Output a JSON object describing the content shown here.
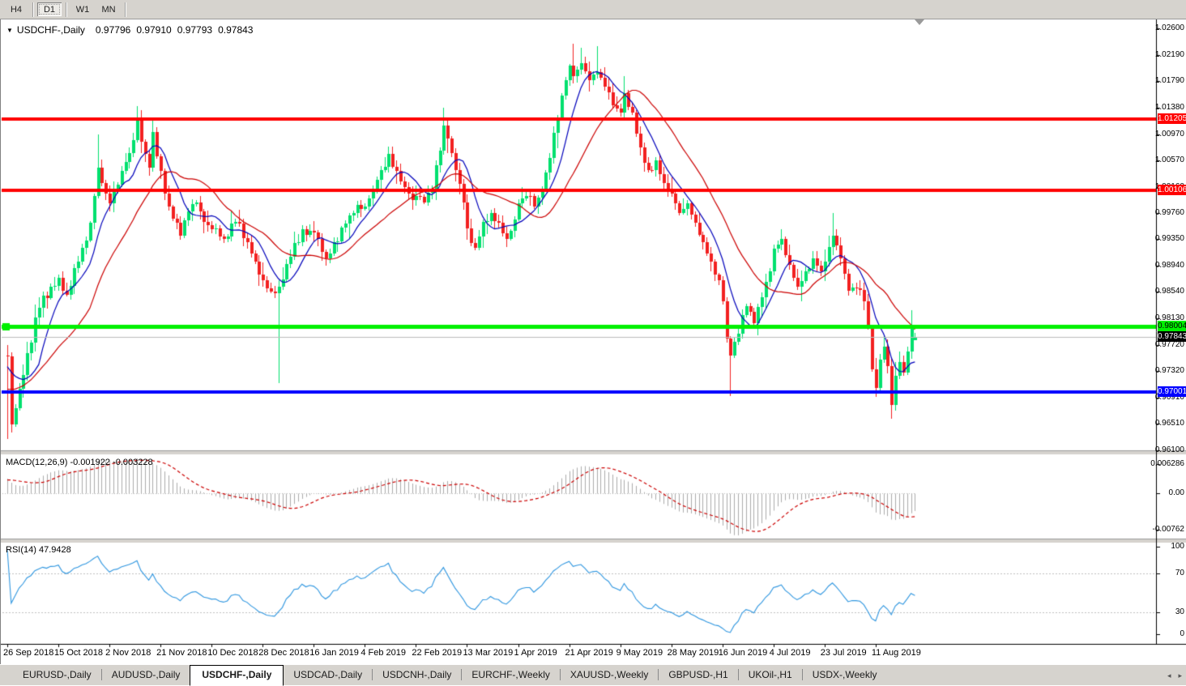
{
  "icons": {
    "dropdown": "▼",
    "left_arrow": "◂",
    "right_arrow": "▸"
  },
  "toolbar": {
    "timeframes": [
      {
        "label": "H4",
        "active": false
      },
      {
        "label": "D1",
        "active": true
      },
      {
        "label": "W1",
        "active": false
      },
      {
        "label": "MN",
        "active": false
      }
    ]
  },
  "chart": {
    "symbol": "USDCHF-,Daily",
    "ohlc": {
      "open": "0.97796",
      "high": "0.97910",
      "low": "0.97793",
      "close": "0.97843"
    }
  },
  "macd_panel": {
    "label": "MACD(12,26,9) -0.001922 -0.003228",
    "axis": [
      {
        "text": "0.006286",
        "v": 0.006286
      },
      {
        "text": "0.00",
        "v": 0
      },
      {
        "text": "-0.00762",
        "v": -0.00762
      }
    ]
  },
  "rsi_panel": {
    "label": "RSI(14) 47.9428",
    "axis": [
      {
        "text": "100",
        "v": 100
      },
      {
        "text": "70",
        "v": 70
      },
      {
        "text": "30",
        "v": 30
      },
      {
        "text": "0",
        "v": 0
      }
    ]
  },
  "price_axis": {
    "ticks": [
      "1.02600",
      "1.02190",
      "1.01790",
      "1.01380",
      "1.00970",
      "1.00570",
      "1.00160",
      "0.99760",
      "0.99350",
      "0.98940",
      "0.98540",
      "0.98130",
      "0.97720",
      "0.97320",
      "0.96910",
      "0.96510",
      "0.96100"
    ]
  },
  "date_axis": {
    "labels": [
      {
        "text": "26 Sep 2018",
        "i": 0
      },
      {
        "text": "15 Oct 2018",
        "i": 13
      },
      {
        "text": "2 Nov 2018",
        "i": 26
      },
      {
        "text": "21 Nov 2018",
        "i": 39
      },
      {
        "text": "10 Dec 2018",
        "i": 52
      },
      {
        "text": "28 Dec 2018",
        "i": 65
      },
      {
        "text": "16 Jan 2019",
        "i": 78
      },
      {
        "text": "4 Feb 2019",
        "i": 91
      },
      {
        "text": "22 Feb 2019",
        "i": 104
      },
      {
        "text": "13 Mar 2019",
        "i": 117
      },
      {
        "text": "1 Apr 2019",
        "i": 130
      },
      {
        "text": "21 Apr 2019",
        "i": 143
      },
      {
        "text": "9 May 2019",
        "i": 156
      },
      {
        "text": "28 May 2019",
        "i": 169
      },
      {
        "text": "16 Jun 2019",
        "i": 182
      },
      {
        "text": "4 Jul 2019",
        "i": 195
      },
      {
        "text": "23 Jul 2019",
        "i": 208
      },
      {
        "text": "11 Aug 2019",
        "i": 221
      }
    ]
  },
  "tabs": {
    "items": [
      {
        "label": "EURUSD-,Daily",
        "active": false
      },
      {
        "label": "AUDUSD-,Daily",
        "active": false
      },
      {
        "label": "USDCHF-,Daily",
        "active": true
      },
      {
        "label": "USDCAD-,Daily",
        "active": false
      },
      {
        "label": "USDCNH-,Daily",
        "active": false
      },
      {
        "label": "EURCHF-,Weekly",
        "active": false
      },
      {
        "label": "XAUUSD-,Weekly",
        "active": false
      },
      {
        "label": "GBPUSD-,H1",
        "active": false
      },
      {
        "label": "UKOil-,H1",
        "active": false
      },
      {
        "label": "USDX-,Weekly",
        "active": false
      }
    ]
  },
  "chart_data": {
    "type": "candlestick",
    "symbol": "USDCHF",
    "timeframe": "Daily",
    "bars": 232,
    "x_range_dates": [
      "26 Sep 2018",
      "21 Aug 2019"
    ],
    "y_min": 0.961,
    "y_max": 1.026,
    "colors": {
      "bull": "#00E06E",
      "bear": "#F22020"
    },
    "last_bar": {
      "open": 0.97796,
      "high": 0.9791,
      "low": 0.97793,
      "close": 0.97843
    },
    "close_anchors": [
      [
        0,
        0.9755
      ],
      [
        1,
        0.965
      ],
      [
        3,
        0.9705
      ],
      [
        5,
        0.976
      ],
      [
        8,
        0.983
      ],
      [
        11,
        0.9862
      ],
      [
        13,
        0.9875
      ],
      [
        15,
        0.985
      ],
      [
        18,
        0.99
      ],
      [
        21,
        0.996
      ],
      [
        23,
        1.0045
      ],
      [
        25,
        1.0005
      ],
      [
        26,
        0.999
      ],
      [
        29,
        1.004
      ],
      [
        31,
        1.0068
      ],
      [
        33,
        1.012
      ],
      [
        34,
        1.0085
      ],
      [
        36,
        1.0045
      ],
      [
        37,
        1.01
      ],
      [
        39,
        1.004
      ],
      [
        41,
        0.9985
      ],
      [
        44,
        0.994
      ],
      [
        46,
        0.9978
      ],
      [
        48,
        0.9992
      ],
      [
        50,
        0.9962
      ],
      [
        52,
        0.995
      ],
      [
        55,
        0.9935
      ],
      [
        58,
        0.9962
      ],
      [
        61,
        0.993
      ],
      [
        63,
        0.99
      ],
      [
        65,
        0.9872
      ],
      [
        67,
        0.9855
      ],
      [
        69,
        0.9862
      ],
      [
        72,
        0.9908
      ],
      [
        75,
        0.995
      ],
      [
        78,
        0.9945
      ],
      [
        81,
        0.9905
      ],
      [
        84,
        0.9932
      ],
      [
        87,
        0.9972
      ],
      [
        89,
        0.9988
      ],
      [
        91,
        0.9985
      ],
      [
        93,
        1.0012
      ],
      [
        95,
        1.0042
      ],
      [
        97,
        1.0066
      ],
      [
        99,
        1.004
      ],
      [
        101,
        1.0015
      ],
      [
        103,
        0.9996
      ],
      [
        104,
        1.0002
      ],
      [
        106,
        0.9992
      ],
      [
        108,
        1.0012
      ],
      [
        110,
        1.0072
      ],
      [
        111,
        1.011
      ],
      [
        112,
        1.009
      ],
      [
        114,
        1.0042
      ],
      [
        116,
        0.9992
      ],
      [
        117,
        0.9952
      ],
      [
        119,
        0.9922
      ],
      [
        121,
        0.9962
      ],
      [
        123,
        0.9976
      ],
      [
        125,
        0.996
      ],
      [
        127,
        0.9936
      ],
      [
        129,
        0.9966
      ],
      [
        130,
        0.999
      ],
      [
        132,
        1.0002
      ],
      [
        134,
        0.9986
      ],
      [
        136,
        1.0012
      ],
      [
        138,
        1.006
      ],
      [
        140,
        1.0122
      ],
      [
        142,
        1.018
      ],
      [
        143,
        1.0202
      ],
      [
        144,
        1.0186
      ],
      [
        146,
        1.0206
      ],
      [
        148,
        1.018
      ],
      [
        150,
        1.0192
      ],
      [
        152,
        1.017
      ],
      [
        154,
        1.0142
      ],
      [
        156,
        1.013
      ],
      [
        157,
        1.016
      ],
      [
        159,
        1.013
      ],
      [
        161,
        1.0076
      ],
      [
        163,
        1.0042
      ],
      [
        165,
        1.0056
      ],
      [
        167,
        1.0022
      ],
      [
        169,
        1.0006
      ],
      [
        171,
        0.9976
      ],
      [
        173,
        0.999
      ],
      [
        175,
        0.996
      ],
      [
        177,
        0.993
      ],
      [
        179,
        0.99
      ],
      [
        181,
        0.9872
      ],
      [
        182,
        0.984
      ],
      [
        183,
        0.9782
      ],
      [
        184,
        0.9756
      ],
      [
        186,
        0.979
      ],
      [
        188,
        0.9832
      ],
      [
        190,
        0.9806
      ],
      [
        192,
        0.9846
      ],
      [
        194,
        0.9886
      ],
      [
        195,
        0.992
      ],
      [
        197,
        0.9936
      ],
      [
        199,
        0.9896
      ],
      [
        201,
        0.9862
      ],
      [
        203,
        0.9886
      ],
      [
        205,
        0.9906
      ],
      [
        207,
        0.9886
      ],
      [
        208,
        0.99
      ],
      [
        210,
        0.994
      ],
      [
        212,
        0.9906
      ],
      [
        214,
        0.9856
      ],
      [
        216,
        0.986
      ],
      [
        218,
        0.984
      ],
      [
        219,
        0.98
      ],
      [
        220,
        0.9735
      ],
      [
        221,
        0.9706
      ],
      [
        222,
        0.975
      ],
      [
        223,
        0.977
      ],
      [
        224,
        0.974
      ],
      [
        225,
        0.968
      ],
      [
        226,
        0.9725
      ],
      [
        227,
        0.9746
      ],
      [
        228,
        0.973
      ],
      [
        229,
        0.9762
      ],
      [
        230,
        0.98
      ],
      [
        231,
        0.97843
      ]
    ],
    "wick_overrides": {
      "0": {
        "low": 0.9627
      },
      "23": {
        "high": 1.0096
      },
      "33": {
        "high": 1.014
      },
      "69": {
        "low": 0.9713
      },
      "111": {
        "high": 1.0138
      },
      "144": {
        "high": 1.0236
      },
      "150": {
        "high": 1.0232
      },
      "157": {
        "high": 1.0186
      },
      "184": {
        "low": 0.9693
      },
      "197": {
        "high": 0.9951
      },
      "210": {
        "high": 0.9976
      },
      "225": {
        "low": 0.9659
      },
      "230": {
        "high": 0.9826
      }
    },
    "horizontal_lines": [
      {
        "price": 1.01205,
        "color": "#FF0000",
        "width": 4,
        "label_fg": "#FFFFFF"
      },
      {
        "price": 1.00106,
        "color": "#FF0000",
        "width": 4,
        "label_fg": "#FFFFFF"
      },
      {
        "price": 0.98004,
        "color": "#00F000",
        "width": 5,
        "label_fg": "#000000"
      },
      {
        "price": 0.97001,
        "color": "#0000FF",
        "width": 4,
        "label_fg": "#FFFFFF"
      }
    ],
    "current_price": 0.97843,
    "current_price_line_color": "#BDBDBD",
    "moving_averages": [
      {
        "period": 8,
        "color": "#0000BB"
      },
      {
        "period": 21,
        "color": "#CC0000"
      }
    ],
    "macd": {
      "fast": 12,
      "slow": 26,
      "signal": 9,
      "current": -0.001922,
      "current_signal": -0.003228,
      "scale_max": 0.006286,
      "scale_min": -0.00762,
      "histogram_color": "#ACACAC",
      "signal_color": "#CC0000"
    },
    "rsi": {
      "period": 14,
      "current": 47.9428,
      "color": "#2E96E0",
      "levels": [
        70,
        30
      ],
      "level_color": "#C0C0C0"
    }
  }
}
